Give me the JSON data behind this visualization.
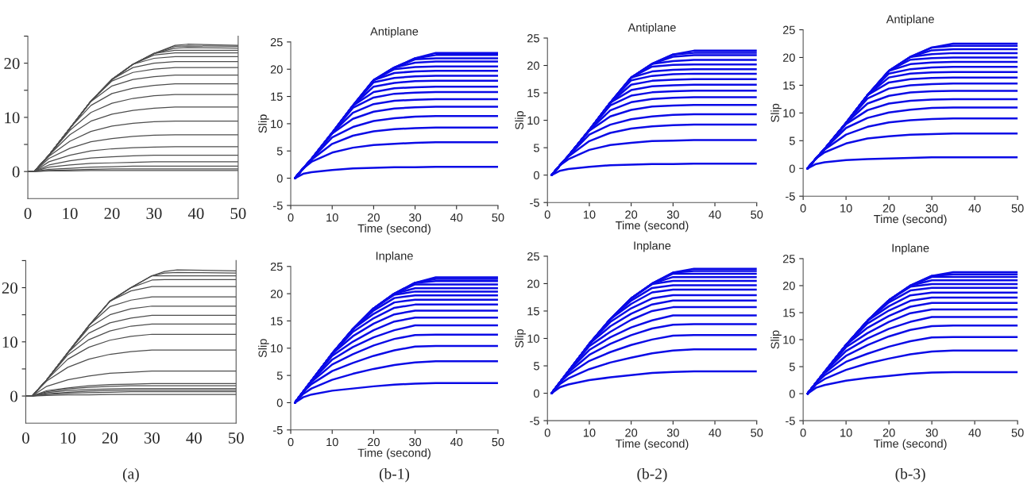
{
  "chart_data": [
    {
      "type": "line",
      "x": [
        0,
        1.5,
        5,
        10,
        15,
        20,
        25,
        30,
        35,
        38,
        50
      ],
      "xlim": [
        0,
        50
      ],
      "xticks": [
        0,
        10,
        20,
        30,
        40,
        50
      ],
      "ylim": [
        -5,
        25
      ],
      "yticks": [
        0,
        {
          "value": 5,
          "label": null
        },
        10,
        {
          "value": 15,
          "label": null
        },
        20,
        {
          "value": 25,
          "label": null
        }
      ],
      "series": [
        {
          "color": "#4d4d4d",
          "values": [
            0,
            0,
            0.1,
            0.1,
            0.2,
            0.2,
            0.2,
            0.2,
            0.2,
            0.2,
            0.2
          ]
        },
        {
          "color": "#4d4d4d",
          "values": [
            0,
            0,
            0.2,
            0.3,
            0.4,
            0.5,
            0.5,
            0.5,
            0.5,
            0.5,
            0.5
          ]
        },
        {
          "color": "#4d4d4d",
          "values": [
            0,
            0,
            0.4,
            0.6,
            0.8,
            0.9,
            1.0,
            1.0,
            1.0,
            1.0,
            1.0
          ]
        },
        {
          "color": "#4d4d4d",
          "values": [
            0,
            0,
            0.8,
            1.2,
            1.5,
            1.6,
            1.7,
            1.8,
            1.8,
            1.8,
            1.8
          ]
        },
        {
          "color": "#4d4d4d",
          "values": [
            0,
            0,
            1.2,
            2.0,
            2.5,
            2.7,
            2.9,
            3.0,
            3.0,
            3.0,
            3.0
          ]
        },
        {
          "color": "#4d4d4d",
          "values": [
            0,
            0,
            1.8,
            3.0,
            3.8,
            4.2,
            4.4,
            4.5,
            4.6,
            4.6,
            4.6
          ]
        },
        {
          "color": "#4d4d4d",
          "values": [
            0,
            0,
            2.4,
            4.3,
            5.5,
            6.1,
            6.5,
            6.7,
            6.8,
            6.8,
            6.8
          ]
        },
        {
          "color": "#4d4d4d",
          "values": [
            0,
            0,
            2.8,
            5.6,
            7.4,
            8.4,
            8.9,
            9.2,
            9.3,
            9.3,
            9.3
          ]
        },
        {
          "color": "#4d4d4d",
          "values": [
            0,
            0,
            3,
            6.8,
            9.3,
            10.6,
            11.3,
            11.7,
            11.9,
            11.9,
            11.9
          ]
        },
        {
          "color": "#4d4d4d",
          "values": [
            0,
            0,
            3,
            7.6,
            10.9,
            12.6,
            13.5,
            14.0,
            14.2,
            14.2,
            14.2
          ]
        },
        {
          "color": "#4d4d4d",
          "values": [
            0,
            0,
            3,
            8,
            12.2,
            14.4,
            15.4,
            15.9,
            16.2,
            16.2,
            16.2
          ]
        },
        {
          "color": "#4d4d4d",
          "values": [
            0,
            0,
            3,
            8,
            12.9,
            15.8,
            17.0,
            17.5,
            17.8,
            17.8,
            17.8
          ]
        },
        {
          "color": "#4d4d4d",
          "values": [
            0,
            0,
            3,
            8,
            13,
            16.7,
            18.3,
            18.9,
            19.2,
            19.2,
            19.2
          ]
        },
        {
          "color": "#4d4d4d",
          "values": [
            0,
            0,
            3,
            8,
            13,
            17,
            19.2,
            20.0,
            20.3,
            20.3,
            20.3
          ]
        },
        {
          "color": "#4d4d4d",
          "values": [
            0,
            0,
            3,
            8,
            13,
            17,
            19.8,
            20.9,
            21.2,
            21.2,
            21.2
          ]
        },
        {
          "color": "#4d4d4d",
          "values": [
            0,
            0,
            3,
            8,
            13,
            17,
            19.8,
            21.5,
            21.9,
            21.9,
            21.9
          ]
        },
        {
          "color": "#4d4d4d",
          "values": [
            0,
            0,
            3,
            8,
            13,
            17,
            19.8,
            21.8,
            22.4,
            22.4,
            22.4
          ]
        },
        {
          "color": "#4d4d4d",
          "values": [
            0,
            0,
            3,
            8,
            13,
            17,
            19.8,
            21.8,
            22.8,
            22.9,
            22.8
          ]
        },
        {
          "color": "#4d4d4d",
          "values": [
            0,
            0,
            3,
            8,
            13,
            17,
            19.8,
            21.8,
            23.1,
            23.2,
            23.1
          ]
        },
        {
          "color": "#4d4d4d",
          "values": [
            0,
            0,
            3,
            8,
            13,
            17,
            19.8,
            21.8,
            23.3,
            23.5,
            23.3
          ]
        }
      ]
    },
    {
      "type": "line",
      "title": "Antiplane",
      "xlabel": "Time (second)",
      "ylabel": "Slip",
      "x": [
        1,
        3,
        5,
        10,
        15,
        20,
        25,
        30,
        35,
        50
      ],
      "xlim": [
        0,
        50
      ],
      "xticks": [
        0,
        10,
        20,
        30,
        40,
        50
      ],
      "ylim": [
        -5,
        25
      ],
      "yticks": [
        -5,
        0,
        5,
        10,
        15,
        20,
        25
      ],
      "series": [
        {
          "color": "#0a0ae6",
          "values": [
            0,
            0.8,
            1.1,
            1.5,
            1.8,
            1.9,
            2.0,
            2.0,
            2.1,
            2.1
          ]
        },
        {
          "color": "#0a0ae6",
          "values": [
            0,
            1.8,
            3.0,
            4.7,
            5.6,
            6.1,
            6.3,
            6.5,
            6.6,
            6.6
          ]
        },
        {
          "color": "#0a0ae6",
          "values": [
            0,
            1.8,
            3.4,
            6.3,
            7.8,
            8.6,
            9.0,
            9.2,
            9.3,
            9.3
          ]
        },
        {
          "color": "#0a0ae6",
          "values": [
            0,
            1.8,
            3.5,
            7.5,
            9.4,
            10.5,
            11.0,
            11.3,
            11.4,
            11.4
          ]
        },
        {
          "color": "#0a0ae6",
          "values": [
            0,
            1.8,
            3.5,
            8.2,
            10.9,
            12.2,
            12.8,
            13.0,
            13.1,
            13.1
          ]
        },
        {
          "color": "#0a0ae6",
          "values": [
            0,
            1.8,
            3.5,
            8.3,
            12.0,
            13.6,
            14.2,
            14.4,
            14.5,
            14.5
          ]
        },
        {
          "color": "#0a0ae6",
          "values": [
            0,
            1.8,
            3.5,
            8.3,
            12.9,
            14.8,
            15.5,
            15.7,
            15.8,
            15.8
          ]
        },
        {
          "color": "#0a0ae6",
          "values": [
            0,
            1.8,
            3.5,
            8.3,
            13.3,
            15.8,
            16.5,
            16.7,
            16.8,
            16.8
          ]
        },
        {
          "color": "#0a0ae6",
          "values": [
            0,
            1.8,
            3.5,
            8.3,
            13.3,
            16.8,
            17.5,
            17.8,
            17.9,
            17.9
          ]
        },
        {
          "color": "#0a0ae6",
          "values": [
            0,
            1.8,
            3.5,
            8.3,
            13.3,
            17.6,
            18.4,
            18.7,
            18.8,
            18.8
          ]
        },
        {
          "color": "#0a0ae6",
          "values": [
            0,
            1.8,
            3.5,
            8.3,
            13.3,
            18,
            19.3,
            19.6,
            19.7,
            19.7
          ]
        },
        {
          "color": "#0a0ae6",
          "values": [
            0,
            1.8,
            3.5,
            8.3,
            13.3,
            18,
            20.0,
            20.4,
            20.5,
            20.5
          ]
        },
        {
          "color": "#0a0ae6",
          "values": [
            0,
            1.8,
            3.5,
            8.3,
            13.3,
            18,
            20.3,
            21.2,
            21.4,
            21.4
          ]
        },
        {
          "color": "#0a0ae6",
          "values": [
            0,
            1.8,
            3.5,
            8.3,
            13.3,
            18,
            20.3,
            21.8,
            22.0,
            22.0
          ]
        },
        {
          "color": "#0a0ae6",
          "values": [
            0,
            1.8,
            3.5,
            8.3,
            13.3,
            18,
            20.3,
            22,
            22.6,
            22.6
          ]
        },
        {
          "color": "#0a0ae6",
          "values": [
            0,
            1.8,
            3.5,
            8.3,
            13.3,
            18,
            20.3,
            22,
            23,
            23
          ]
        }
      ]
    },
    {
      "type": "line",
      "title": "Antiplane",
      "xlabel": "Time (second)",
      "ylabel": "Slip",
      "x": [
        1,
        3,
        5,
        10,
        15,
        20,
        25,
        30,
        35,
        50
      ],
      "xlim": [
        0,
        50
      ],
      "xticks": [
        0,
        10,
        20,
        30,
        40,
        50
      ],
      "ylim": [
        -5,
        25
      ],
      "yticks": [
        -5,
        0,
        5,
        10,
        15,
        20,
        25
      ],
      "series": [
        {
          "color": "#0a0ae6",
          "values": [
            0,
            0.8,
            1.1,
            1.5,
            1.8,
            1.9,
            2.0,
            2.0,
            2.1,
            2.1
          ]
        },
        {
          "color": "#0a0ae6",
          "values": [
            0,
            1.8,
            2.9,
            4.6,
            5.5,
            5.9,
            6.2,
            6.3,
            6.4,
            6.4
          ]
        },
        {
          "color": "#0a0ae6",
          "values": [
            0,
            1.8,
            3.4,
            6.2,
            7.7,
            8.5,
            8.9,
            9.1,
            9.2,
            9.2
          ]
        },
        {
          "color": "#0a0ae6",
          "values": [
            0,
            1.8,
            3.5,
            7.4,
            9.2,
            10.2,
            10.7,
            11.0,
            11.1,
            11.1
          ]
        },
        {
          "color": "#0a0ae6",
          "values": [
            0,
            1.8,
            3.5,
            8.1,
            10.7,
            11.9,
            12.5,
            12.7,
            12.8,
            12.8
          ]
        },
        {
          "color": "#0a0ae6",
          "values": [
            0,
            1.8,
            3.5,
            8.2,
            11.8,
            13.3,
            13.9,
            14.1,
            14.2,
            14.2
          ]
        },
        {
          "color": "#0a0ae6",
          "values": [
            0,
            1.8,
            3.5,
            8.2,
            12.7,
            14.5,
            15.1,
            15.3,
            15.4,
            15.4
          ]
        },
        {
          "color": "#0a0ae6",
          "values": [
            0,
            1.8,
            3.5,
            8.2,
            13.2,
            15.5,
            16.2,
            16.4,
            16.5,
            16.5
          ]
        },
        {
          "color": "#0a0ae6",
          "values": [
            0,
            1.8,
            3.5,
            8.2,
            13.2,
            16.5,
            17.2,
            17.4,
            17.5,
            17.5
          ]
        },
        {
          "color": "#0a0ae6",
          "values": [
            0,
            1.8,
            3.5,
            8.2,
            13.2,
            17.3,
            18.1,
            18.4,
            18.5,
            18.5
          ]
        },
        {
          "color": "#0a0ae6",
          "values": [
            0,
            1.8,
            3.5,
            8.2,
            13.2,
            17.8,
            18.9,
            19.2,
            19.3,
            19.3
          ]
        },
        {
          "color": "#0a0ae6",
          "values": [
            0,
            1.8,
            3.5,
            8.2,
            13.2,
            17.8,
            19.8,
            20.1,
            20.2,
            20.2
          ]
        },
        {
          "color": "#0a0ae6",
          "values": [
            0,
            1.8,
            3.5,
            8.2,
            13.2,
            17.8,
            20.3,
            20.8,
            21.0,
            21.0
          ]
        },
        {
          "color": "#0a0ae6",
          "values": [
            0,
            1.8,
            3.5,
            8.2,
            13.2,
            17.8,
            20.3,
            21.6,
            21.9,
            21.9
          ]
        },
        {
          "color": "#0a0ae6",
          "values": [
            0,
            1.8,
            3.5,
            8.2,
            13.2,
            17.8,
            20.3,
            22,
            22.3,
            22.3
          ]
        },
        {
          "color": "#0a0ae6",
          "values": [
            0,
            1.8,
            3.5,
            8.2,
            13.2,
            17.8,
            20.3,
            22,
            22.7,
            22.7
          ]
        }
      ]
    },
    {
      "type": "line",
      "title": "Antiplane",
      "xlabel": "Time (second)",
      "ylabel": "Slip",
      "x": [
        1,
        3,
        5,
        10,
        15,
        20,
        25,
        30,
        35,
        50
      ],
      "xlim": [
        0,
        50
      ],
      "xticks": [
        0,
        10,
        20,
        30,
        40,
        50
      ],
      "ylim": [
        -5,
        25
      ],
      "yticks": [
        -5,
        0,
        5,
        10,
        15,
        20,
        25
      ],
      "series": [
        {
          "color": "#0a0ae6",
          "values": [
            0,
            0.8,
            1.1,
            1.5,
            1.7,
            1.8,
            1.9,
            2.0,
            2.0,
            2.0
          ]
        },
        {
          "color": "#0a0ae6",
          "values": [
            0,
            1.8,
            2.9,
            4.5,
            5.4,
            5.8,
            6.1,
            6.2,
            6.3,
            6.3
          ]
        },
        {
          "color": "#0a0ae6",
          "values": [
            0,
            1.8,
            3.4,
            6.1,
            7.5,
            8.3,
            8.7,
            8.9,
            9.0,
            9.0
          ]
        },
        {
          "color": "#0a0ae6",
          "values": [
            0,
            1.8,
            3.5,
            7.3,
            9.1,
            10.1,
            10.6,
            10.9,
            11.0,
            11.0
          ]
        },
        {
          "color": "#0a0ae6",
          "values": [
            0,
            1.8,
            3.5,
            8.0,
            10.5,
            11.7,
            12.2,
            12.4,
            12.5,
            12.5
          ]
        },
        {
          "color": "#0a0ae6",
          "values": [
            0,
            1.8,
            3.5,
            8.2,
            11.7,
            13.1,
            13.7,
            13.9,
            14.0,
            14.0
          ]
        },
        {
          "color": "#0a0ae6",
          "values": [
            0,
            1.8,
            3.5,
            8.2,
            12.6,
            14.4,
            15.0,
            15.2,
            15.3,
            15.3
          ]
        },
        {
          "color": "#0a0ae6",
          "values": [
            0,
            1.8,
            3.5,
            8.2,
            13.2,
            15.5,
            16.1,
            16.3,
            16.4,
            16.4
          ]
        },
        {
          "color": "#0a0ae6",
          "values": [
            0,
            1.8,
            3.5,
            8.2,
            13.2,
            16.4,
            17.1,
            17.3,
            17.4,
            17.4
          ]
        },
        {
          "color": "#0a0ae6",
          "values": [
            0,
            1.8,
            3.5,
            8.2,
            13.2,
            17.1,
            17.9,
            18.2,
            18.3,
            18.3
          ]
        },
        {
          "color": "#0a0ae6",
          "values": [
            0,
            1.8,
            3.5,
            8.2,
            13.2,
            17.6,
            18.8,
            19.1,
            19.2,
            19.2
          ]
        },
        {
          "color": "#0a0ae6",
          "values": [
            0,
            1.8,
            3.5,
            8.2,
            13.2,
            17.6,
            19.6,
            19.9,
            20.0,
            20.0
          ]
        },
        {
          "color": "#0a0ae6",
          "values": [
            0,
            1.8,
            3.5,
            8.2,
            13.2,
            17.6,
            20.1,
            20.6,
            20.8,
            20.8
          ]
        },
        {
          "color": "#0a0ae6",
          "values": [
            0,
            1.8,
            3.5,
            8.2,
            13.2,
            17.6,
            20.1,
            21.3,
            21.5,
            21.5
          ]
        },
        {
          "color": "#0a0ae6",
          "values": [
            0,
            1.8,
            3.5,
            8.2,
            13.2,
            17.6,
            20.1,
            21.8,
            22.1,
            22.1
          ]
        },
        {
          "color": "#0a0ae6",
          "values": [
            0,
            1.8,
            3.5,
            8.2,
            13.2,
            17.6,
            20.1,
            21.8,
            22.5,
            22.5
          ]
        }
      ]
    },
    {
      "type": "line",
      "annotations": [
        "(a)"
      ],
      "x": [
        0,
        1.5,
        5,
        10,
        15,
        20,
        25,
        30,
        33,
        36,
        50
      ],
      "xlim": [
        0,
        50
      ],
      "xticks": [
        0,
        10,
        20,
        30,
        40,
        50
      ],
      "ylim": [
        -5,
        25
      ],
      "yticks": [
        0,
        {
          "value": 5,
          "label": null
        },
        10,
        {
          "value": 15,
          "label": null
        },
        20,
        {
          "value": 25,
          "label": null
        }
      ],
      "series": [
        {
          "color": "#4d4d4d",
          "values": [
            0,
            0,
            0.1,
            0.2,
            0.2,
            0.3,
            0.3,
            0.3,
            0.3,
            0.3,
            0.3
          ]
        },
        {
          "color": "#4d4d4d",
          "values": [
            0,
            0,
            0.3,
            0.5,
            0.6,
            0.7,
            0.8,
            0.8,
            0.8,
            0.8,
            0.8
          ]
        },
        {
          "color": "#4d4d4d",
          "values": [
            0,
            0,
            0.4,
            0.7,
            0.9,
            1.0,
            1.1,
            1.1,
            1.1,
            1.1,
            1.1
          ]
        },
        {
          "color": "#4d4d4d",
          "values": [
            0,
            0,
            0.6,
            1.0,
            1.2,
            1.3,
            1.4,
            1.4,
            1.4,
            1.4,
            1.4
          ]
        },
        {
          "color": "#4d4d4d",
          "values": [
            0,
            0,
            0.8,
            1.3,
            1.6,
            1.8,
            1.9,
            1.9,
            1.9,
            1.9,
            1.9
          ]
        },
        {
          "color": "#4d4d4d",
          "values": [
            0,
            0,
            1.0,
            1.5,
            1.9,
            2.1,
            2.2,
            2.3,
            2.3,
            2.3,
            2.3
          ]
        },
        {
          "color": "#4d4d4d",
          "values": [
            0,
            0,
            1.8,
            3.0,
            3.7,
            4.2,
            4.4,
            4.6,
            4.6,
            4.6,
            4.6
          ]
        },
        {
          "color": "#4d4d4d",
          "values": [
            0,
            0,
            2.8,
            5.3,
            6.8,
            7.7,
            8.2,
            8.5,
            8.5,
            8.5,
            8.5
          ]
        },
        {
          "color": "#4d4d4d",
          "values": [
            0,
            0,
            3,
            6.8,
            9.0,
            10.3,
            11.0,
            11.4,
            11.4,
            11.4,
            11.4
          ]
        },
        {
          "color": "#4d4d4d",
          "values": [
            0,
            0,
            3,
            7.6,
            10.4,
            12.0,
            12.9,
            13.3,
            13.3,
            13.3,
            13.3
          ]
        },
        {
          "color": "#4d4d4d",
          "values": [
            0,
            0,
            3,
            8,
            11.6,
            13.5,
            14.4,
            14.9,
            14.9,
            14.9,
            14.9
          ]
        },
        {
          "color": "#4d4d4d",
          "values": [
            0,
            0,
            3,
            8,
            12.6,
            15.0,
            16.1,
            16.6,
            16.6,
            16.6,
            16.6
          ]
        },
        {
          "color": "#4d4d4d",
          "values": [
            0,
            0,
            3,
            8,
            13,
            16.5,
            17.7,
            18.3,
            18.3,
            18.3,
            18.3
          ]
        },
        {
          "color": "#4d4d4d",
          "values": [
            0,
            0,
            3,
            8,
            13,
            17.5,
            19.4,
            20.2,
            20.2,
            20.2,
            20.2
          ]
        },
        {
          "color": "#4d4d4d",
          "values": [
            0,
            0,
            3,
            8,
            13,
            17.5,
            20,
            21.4,
            21.5,
            21.5,
            21.5
          ]
        },
        {
          "color": "#4d4d4d",
          "values": [
            0,
            0,
            3,
            8,
            13,
            17.5,
            20,
            22.2,
            22.2,
            22.2,
            22.2
          ]
        },
        {
          "color": "#4d4d4d",
          "values": [
            0,
            0,
            3,
            8,
            13,
            17.5,
            20,
            22.2,
            22.7,
            22.8,
            22.7
          ]
        },
        {
          "color": "#4d4d4d",
          "values": [
            0,
            0,
            3,
            8,
            13,
            17.5,
            20,
            22.2,
            23,
            23.3,
            23.1
          ]
        }
      ]
    },
    {
      "type": "line",
      "title": "Inplane",
      "xlabel": "Time (second)",
      "ylabel": "Slip",
      "annotations": [
        "(b-1)"
      ],
      "x": [
        1,
        3,
        5,
        10,
        15,
        20,
        25,
        30,
        35,
        50
      ],
      "xlim": [
        0,
        50
      ],
      "xticks": [
        0,
        10,
        20,
        30,
        40,
        50
      ],
      "ylim": [
        -5,
        25
      ],
      "yticks": [
        -5,
        0,
        5,
        10,
        15,
        20,
        25
      ],
      "series": [
        {
          "color": "#0a0ae6",
          "values": [
            0,
            1.0,
            1.5,
            2.2,
            2.6,
            3.0,
            3.3,
            3.5,
            3.6,
            3.6
          ]
        },
        {
          "color": "#0a0ae6",
          "values": [
            0,
            1.6,
            2.6,
            4.2,
            5.3,
            6.2,
            6.9,
            7.4,
            7.6,
            7.6
          ]
        },
        {
          "color": "#0a0ae6",
          "values": [
            0,
            2,
            3.4,
            5.8,
            7.3,
            8.6,
            9.6,
            10.3,
            10.4,
            10.4
          ]
        },
        {
          "color": "#0a0ae6",
          "values": [
            0,
            2,
            3.8,
            7.0,
            8.9,
            10.5,
            11.7,
            12.4,
            12.5,
            12.5
          ]
        },
        {
          "color": "#0a0ae6",
          "values": [
            0,
            2,
            4,
            7.9,
            10.2,
            12.0,
            13.3,
            14.2,
            14.2,
            14.2
          ]
        },
        {
          "color": "#0a0ae6",
          "values": [
            0,
            2,
            4,
            8.6,
            11.2,
            13.3,
            14.9,
            15.6,
            15.6,
            15.6
          ]
        },
        {
          "color": "#0a0ae6",
          "values": [
            0,
            2,
            4,
            9,
            12.2,
            14.5,
            16.2,
            16.9,
            16.9,
            16.9
          ]
        },
        {
          "color": "#0a0ae6",
          "values": [
            0,
            2,
            4,
            9,
            13,
            15.5,
            17.4,
            18.0,
            18.0,
            18.0
          ]
        },
        {
          "color": "#0a0ae6",
          "values": [
            0,
            2,
            4,
            9,
            13.5,
            16.3,
            18.4,
            18.9,
            18.9,
            18.9
          ]
        },
        {
          "color": "#0a0ae6",
          "values": [
            0,
            2,
            4,
            9,
            13.5,
            16.9,
            19.2,
            19.7,
            19.7,
            19.7
          ]
        },
        {
          "color": "#0a0ae6",
          "values": [
            0,
            2,
            4,
            9,
            13.5,
            17.3,
            19.8,
            20.4,
            20.4,
            20.4
          ]
        },
        {
          "color": "#0a0ae6",
          "values": [
            0,
            2,
            4,
            9,
            13.5,
            17.3,
            20,
            21.0,
            21.0,
            21.0
          ]
        },
        {
          "color": "#0a0ae6",
          "values": [
            0,
            2,
            4,
            9,
            13.5,
            17.3,
            20,
            21.7,
            21.7,
            21.7
          ]
        },
        {
          "color": "#0a0ae6",
          "values": [
            0,
            2,
            4,
            9,
            13.5,
            17.3,
            20,
            22,
            22.3,
            22.3
          ]
        },
        {
          "color": "#0a0ae6",
          "values": [
            0,
            2,
            4,
            9,
            13.5,
            17.3,
            20,
            22,
            22.7,
            22.7
          ]
        },
        {
          "color": "#0a0ae6",
          "values": [
            0,
            2,
            4,
            9,
            13.5,
            17.3,
            20,
            22,
            23,
            23
          ]
        }
      ]
    },
    {
      "type": "line",
      "title": "Inplane",
      "xlabel": "Time (second)",
      "ylabel": "Slip",
      "annotations": [
        "(b-2)"
      ],
      "x": [
        1,
        3,
        5,
        10,
        15,
        20,
        25,
        30,
        35,
        50
      ],
      "xlim": [
        0,
        50
      ],
      "xticks": [
        0,
        10,
        20,
        30,
        40,
        50
      ],
      "ylim": [
        -5,
        25
      ],
      "yticks": [
        -5,
        0,
        5,
        10,
        15,
        20,
        25
      ],
      "series": [
        {
          "color": "#0a0ae6",
          "values": [
            0,
            1.1,
            1.6,
            2.4,
            2.9,
            3.3,
            3.7,
            3.9,
            4.0,
            4.0
          ]
        },
        {
          "color": "#0a0ae6",
          "values": [
            0,
            1.7,
            2.7,
            4.4,
            5.6,
            6.5,
            7.3,
            7.8,
            8.0,
            8.0
          ]
        },
        {
          "color": "#0a0ae6",
          "values": [
            0,
            2,
            3.4,
            5.9,
            7.5,
            8.8,
            9.8,
            10.5,
            10.6,
            10.6
          ]
        },
        {
          "color": "#0a0ae6",
          "values": [
            0,
            2,
            3.8,
            7.0,
            9.0,
            10.6,
            11.8,
            12.5,
            12.6,
            12.6
          ]
        },
        {
          "color": "#0a0ae6",
          "values": [
            0,
            2,
            4,
            7.9,
            10.2,
            12.0,
            13.3,
            14.2,
            14.2,
            14.2
          ]
        },
        {
          "color": "#0a0ae6",
          "values": [
            0,
            2,
            4,
            8.6,
            11.2,
            13.4,
            15.0,
            15.7,
            15.7,
            15.7
          ]
        },
        {
          "color": "#0a0ae6",
          "values": [
            0,
            2,
            4,
            9,
            12.2,
            14.5,
            16.2,
            16.9,
            16.9,
            16.9
          ]
        },
        {
          "color": "#0a0ae6",
          "values": [
            0,
            2,
            4,
            9,
            13,
            15.5,
            17.3,
            17.9,
            17.9,
            17.9
          ]
        },
        {
          "color": "#0a0ae6",
          "values": [
            0,
            2,
            4,
            9,
            13.5,
            16.3,
            18.4,
            18.9,
            18.9,
            18.9
          ]
        },
        {
          "color": "#0a0ae6",
          "values": [
            0,
            2,
            4,
            9,
            13.5,
            16.9,
            19.2,
            19.7,
            19.7,
            19.7
          ]
        },
        {
          "color": "#0a0ae6",
          "values": [
            0,
            2,
            4,
            9,
            13.5,
            17.3,
            19.9,
            20.5,
            20.5,
            20.5
          ]
        },
        {
          "color": "#0a0ae6",
          "values": [
            0,
            2,
            4,
            9,
            13.5,
            17.3,
            20,
            21.2,
            21.2,
            21.2
          ]
        },
        {
          "color": "#0a0ae6",
          "values": [
            0,
            2,
            4,
            9,
            13.5,
            17.3,
            20,
            21.8,
            21.8,
            21.8
          ]
        },
        {
          "color": "#0a0ae6",
          "values": [
            0,
            2,
            4,
            9,
            13.5,
            17.3,
            20,
            22,
            22.3,
            22.3
          ]
        },
        {
          "color": "#0a0ae6",
          "values": [
            0,
            2,
            4,
            9,
            13.5,
            17.3,
            20,
            22,
            22.7,
            22.7
          ]
        }
      ]
    },
    {
      "type": "line",
      "title": "Inplane",
      "xlabel": "Time (second)",
      "ylabel": "Slip",
      "annotations": [
        "(b-3)"
      ],
      "x": [
        1,
        3,
        5,
        10,
        15,
        20,
        25,
        30,
        35,
        50
      ],
      "xlim": [
        0,
        50
      ],
      "xticks": [
        0,
        10,
        20,
        30,
        40,
        50
      ],
      "ylim": [
        -5,
        25
      ],
      "yticks": [
        -5,
        0,
        5,
        10,
        15,
        20,
        25
      ],
      "series": [
        {
          "color": "#0a0ae6",
          "values": [
            0,
            1.1,
            1.6,
            2.4,
            2.9,
            3.3,
            3.7,
            3.9,
            4.0,
            4.0
          ]
        },
        {
          "color": "#0a0ae6",
          "values": [
            0,
            1.7,
            2.7,
            4.4,
            5.6,
            6.5,
            7.3,
            7.8,
            8.0,
            8.0
          ]
        },
        {
          "color": "#0a0ae6",
          "values": [
            0,
            2,
            3.4,
            5.9,
            7.4,
            8.7,
            9.7,
            10.4,
            10.5,
            10.5
          ]
        },
        {
          "color": "#0a0ae6",
          "values": [
            0,
            2,
            3.8,
            7.0,
            9.0,
            10.6,
            11.8,
            12.5,
            12.6,
            12.6
          ]
        },
        {
          "color": "#0a0ae6",
          "values": [
            0,
            2,
            4,
            7.9,
            10.2,
            12.0,
            13.3,
            14.2,
            14.2,
            14.2
          ]
        },
        {
          "color": "#0a0ae6",
          "values": [
            0,
            2,
            4,
            8.6,
            11.2,
            13.3,
            14.9,
            15.6,
            15.6,
            15.6
          ]
        },
        {
          "color": "#0a0ae6",
          "values": [
            0,
            2,
            4,
            9,
            12.2,
            14.4,
            16.1,
            16.8,
            16.8,
            16.8
          ]
        },
        {
          "color": "#0a0ae6",
          "values": [
            0,
            2,
            4,
            9,
            13,
            15.4,
            17.2,
            17.8,
            17.8,
            17.8
          ]
        },
        {
          "color": "#0a0ae6",
          "values": [
            0,
            2,
            4,
            9,
            13.5,
            16.2,
            18.2,
            18.7,
            18.7,
            18.7
          ]
        },
        {
          "color": "#0a0ae6",
          "values": [
            0,
            2,
            4,
            9,
            13.5,
            16.9,
            19.1,
            19.6,
            19.6,
            19.6
          ]
        },
        {
          "color": "#0a0ae6",
          "values": [
            0,
            2,
            4,
            9,
            13.5,
            17.3,
            19.8,
            20.3,
            20.3,
            20.3
          ]
        },
        {
          "color": "#0a0ae6",
          "values": [
            0,
            2,
            4,
            9,
            13.5,
            17.3,
            20,
            21.0,
            21.0,
            21.0
          ]
        },
        {
          "color": "#0a0ae6",
          "values": [
            0,
            2,
            4,
            9,
            13.5,
            17.3,
            20,
            21.6,
            21.6,
            21.6
          ]
        },
        {
          "color": "#0a0ae6",
          "values": [
            0,
            2,
            4,
            9,
            13.5,
            17.3,
            20,
            21.8,
            22.1,
            22.1
          ]
        },
        {
          "color": "#0a0ae6",
          "values": [
            0,
            2,
            4,
            9,
            13.5,
            17.3,
            20,
            21.8,
            22.5,
            22.5
          ]
        }
      ]
    }
  ]
}
